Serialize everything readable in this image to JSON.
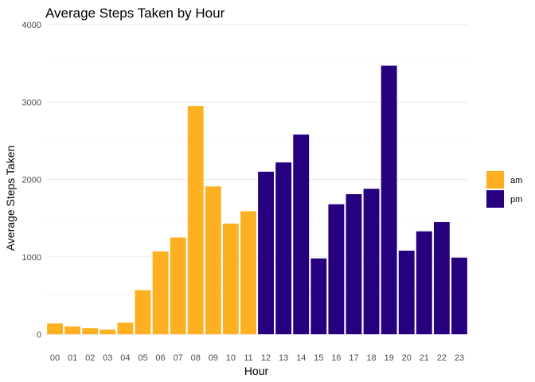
{
  "chart_data": {
    "type": "bar",
    "title": "Average Steps Taken by Hour",
    "xlabel": "Hour",
    "ylabel": "Average Steps Taken",
    "ylim": [
      0,
      4000
    ],
    "y_ticks": [
      "0",
      "1000",
      "2000",
      "3000",
      "4000"
    ],
    "y_tick_values": [
      0,
      1000,
      2000,
      3000,
      4000
    ],
    "grid": "horizontal major and minor lines",
    "legend_position": "right",
    "categories": [
      "00",
      "01",
      "02",
      "03",
      "04",
      "05",
      "06",
      "07",
      "08",
      "09",
      "10",
      "11",
      "12",
      "13",
      "14",
      "15",
      "16",
      "17",
      "18",
      "19",
      "20",
      "21",
      "22",
      "23"
    ],
    "values": [
      140,
      100,
      80,
      60,
      150,
      570,
      1070,
      1250,
      2950,
      1910,
      1430,
      1590,
      2100,
      2220,
      2580,
      980,
      1680,
      1810,
      1880,
      3470,
      1080,
      1330,
      1450,
      990
    ],
    "groups": [
      "am",
      "am",
      "am",
      "am",
      "am",
      "am",
      "am",
      "am",
      "am",
      "am",
      "am",
      "am",
      "pm",
      "pm",
      "pm",
      "pm",
      "pm",
      "pm",
      "pm",
      "pm",
      "pm",
      "pm",
      "pm",
      "pm"
    ],
    "legend": [
      {
        "name": "am",
        "color": "#FDB122"
      },
      {
        "name": "pm",
        "color": "#26007E"
      }
    ]
  }
}
